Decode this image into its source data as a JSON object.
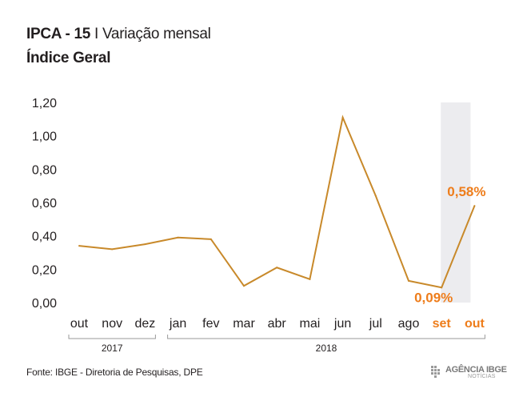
{
  "header": {
    "title_main": "IPCA - 15",
    "title_sep": "I",
    "title_rest": "Variação mensal",
    "subtitle": "Índice Geral"
  },
  "chart_data": {
    "type": "line",
    "categories": [
      "out",
      "nov",
      "dez",
      "jan",
      "fev",
      "mar",
      "abr",
      "mai",
      "jun",
      "jul",
      "ago",
      "set",
      "out"
    ],
    "values": [
      0.34,
      0.32,
      0.35,
      0.39,
      0.38,
      0.1,
      0.21,
      0.14,
      1.11,
      0.64,
      0.13,
      0.09,
      0.58
    ],
    "ylim": [
      0,
      1.2
    ],
    "yticks": [
      "0,00",
      "0,20",
      "0,40",
      "0,60",
      "0,80",
      "1,00",
      "1,20"
    ],
    "ytick_values": [
      0,
      0.2,
      0.4,
      0.6,
      0.8,
      1.0,
      1.2
    ],
    "year_groups": [
      {
        "label": "2017",
        "from": 0,
        "to": 2
      },
      {
        "label": "2018",
        "from": 3,
        "to": 12
      }
    ],
    "highlight_indices": [
      11,
      12
    ],
    "annotations": [
      {
        "index": 11,
        "text": "0,09%"
      },
      {
        "index": 12,
        "text": "0,58%"
      }
    ],
    "line_color": "#c8892a",
    "highlight_color": "#ee7d1b",
    "shade_color": "#ececef",
    "grid": false
  },
  "footer": {
    "source": "Fonte: IBGE - Diretoria de Pesquisas, DPE",
    "logo_text": "AGÊNCIA IBGE",
    "logo_sub": "NOTÍCIAS"
  }
}
